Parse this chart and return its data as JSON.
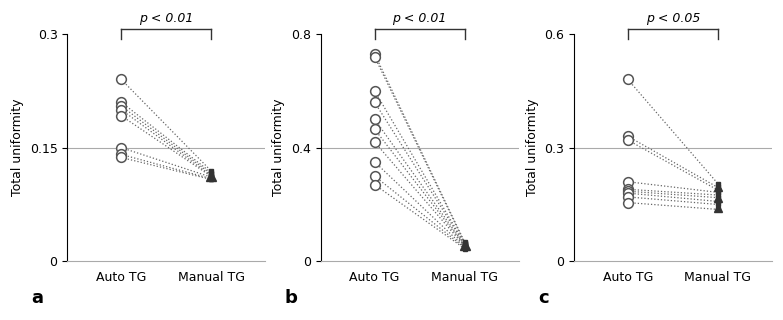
{
  "panels": [
    {
      "label": "a",
      "pvalue": "p < 0.01",
      "ylabel": "Total uniformity",
      "ylim": [
        0,
        0.3
      ],
      "yticks": [
        0,
        0.15,
        0.3
      ],
      "hline": 0.15,
      "auto_tg": [
        0.24,
        0.21,
        0.205,
        0.2,
        0.192,
        0.15,
        0.141,
        0.137
      ],
      "manual_tg": [
        0.119,
        0.117,
        0.115,
        0.113,
        0.112,
        0.111,
        0.109,
        0.108
      ],
      "triangle_manual": 0.113
    },
    {
      "label": "b",
      "pvalue": "p < 0.01",
      "ylabel": "Total uniformity",
      "ylim": [
        0,
        0.8
      ],
      "yticks": [
        0,
        0.4,
        0.8
      ],
      "hline": 0.4,
      "auto_tg": [
        0.73,
        0.72,
        0.6,
        0.56,
        0.5,
        0.465,
        0.42,
        0.35,
        0.3,
        0.27
      ],
      "manual_tg": [
        0.068,
        0.065,
        0.062,
        0.06,
        0.057,
        0.055,
        0.053,
        0.05,
        0.048,
        0.045
      ],
      "triangle_manual": 0.058
    },
    {
      "label": "c",
      "pvalue": "p < 0.05",
      "ylabel": "Total uniformity",
      "ylim": [
        0,
        0.6
      ],
      "yticks": [
        0,
        0.3,
        0.6
      ],
      "hline": 0.3,
      "auto_tg": [
        0.48,
        0.33,
        0.32,
        0.21,
        0.19,
        0.185,
        0.18,
        0.17,
        0.155
      ],
      "manual_tg": [
        0.205,
        0.195,
        0.188,
        0.182,
        0.175,
        0.168,
        0.158,
        0.15,
        0.137
      ],
      "triangle_manual_list": [
        0.195,
        0.168,
        0.14
      ]
    }
  ],
  "xtick_labels": [
    "Auto TG",
    "Manual TG"
  ],
  "line_color": "#666666",
  "hline_color": "#aaaaaa",
  "bracket_color": "#333333",
  "bg_color": "#ffffff",
  "circle_face": "white",
  "circle_edge": "#555555",
  "tri_color": "#333333"
}
